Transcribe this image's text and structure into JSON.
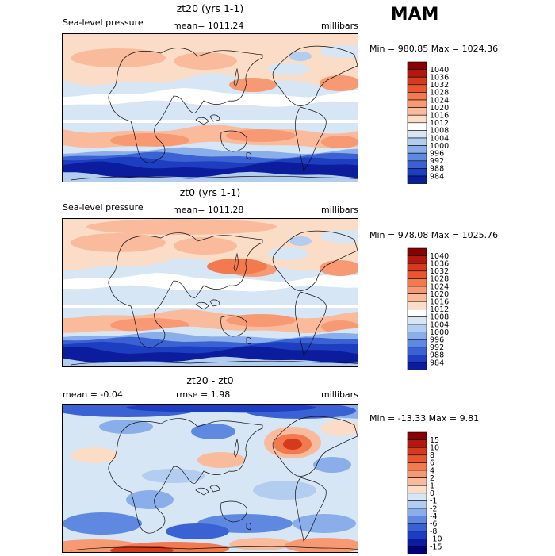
{
  "season": "MAM",
  "panels": [
    {
      "title": "zt20 (yrs 1-1)",
      "left_label": "Sea-level pressure",
      "center_label": "mean= 1011.24",
      "units": "millibars",
      "minmax": "Min = 980.85 Max = 1024.36",
      "field": "full"
    },
    {
      "title": "zt0 (yrs 1-1)",
      "left_label": "Sea-level pressure",
      "center_label": "mean= 1011.28",
      "units": "millibars",
      "minmax": "Min = 978.08 Max = 1025.76",
      "field": "full"
    },
    {
      "title": "zt20 - zt0",
      "left_label": "mean = -0.04",
      "center_label": "rmse = 1.98",
      "units": "millibars",
      "minmax": "Min = -13.33 Max = 9.81",
      "field": "diff"
    }
  ],
  "colorbars": {
    "full": {
      "labels": [
        "1040",
        "1036",
        "1032",
        "1028",
        "1024",
        "1020",
        "1016",
        "1012",
        "1008",
        "1004",
        "1000",
        "996",
        "992",
        "988",
        "984"
      ],
      "colors": [
        "#8b0000",
        "#b2180e",
        "#d43b1c",
        "#e8572e",
        "#f27a4e",
        "#f79a74",
        "#f9bb9c",
        "#fbdcc7",
        "#ffffff",
        "#d6e6f5",
        "#b2cdef",
        "#8aaee9",
        "#5f89e0",
        "#3a62d3",
        "#1d3ec0",
        "#0b1d9c"
      ]
    },
    "diff": {
      "labels": [
        "15",
        "10",
        "8",
        "6",
        "4",
        "2",
        "1",
        "0",
        "-1",
        "-2",
        "-4",
        "-6",
        "-8",
        "-10",
        "-15"
      ],
      "colors": [
        "#8b0000",
        "#b2180e",
        "#d43b1c",
        "#e8572e",
        "#f27a4e",
        "#f79a74",
        "#f9bb9c",
        "#fbdcc7",
        "#d6e6f5",
        "#b2cdef",
        "#8aaee9",
        "#5f89e0",
        "#3a62d3",
        "#1d3ec0",
        "#0b1d9c",
        "#00007a"
      ]
    }
  },
  "chart_data": [
    {
      "type": "heatmap",
      "title": "zt20 (yrs 1-1)",
      "variable": "Sea-level pressure",
      "units": "millibars",
      "mean": 1011.24,
      "min": 980.85,
      "max": 1024.36,
      "levels": [
        984,
        988,
        992,
        996,
        1000,
        1004,
        1008,
        1012,
        1016,
        1020,
        1024,
        1028,
        1032,
        1036,
        1040
      ]
    },
    {
      "type": "heatmap",
      "title": "zt0 (yrs 1-1)",
      "variable": "Sea-level pressure",
      "units": "millibars",
      "mean": 1011.28,
      "min": 978.08,
      "max": 1025.76,
      "levels": [
        984,
        988,
        992,
        996,
        1000,
        1004,
        1008,
        1012,
        1016,
        1020,
        1024,
        1028,
        1032,
        1036,
        1040
      ]
    },
    {
      "type": "heatmap",
      "title": "zt20 - zt0",
      "units": "millibars",
      "mean": -0.04,
      "rmse": 1.98,
      "min": -13.33,
      "max": 9.81,
      "levels": [
        -15,
        -10,
        -8,
        -6,
        -4,
        -2,
        -1,
        0,
        1,
        2,
        4,
        6,
        8,
        10,
        15
      ]
    }
  ]
}
